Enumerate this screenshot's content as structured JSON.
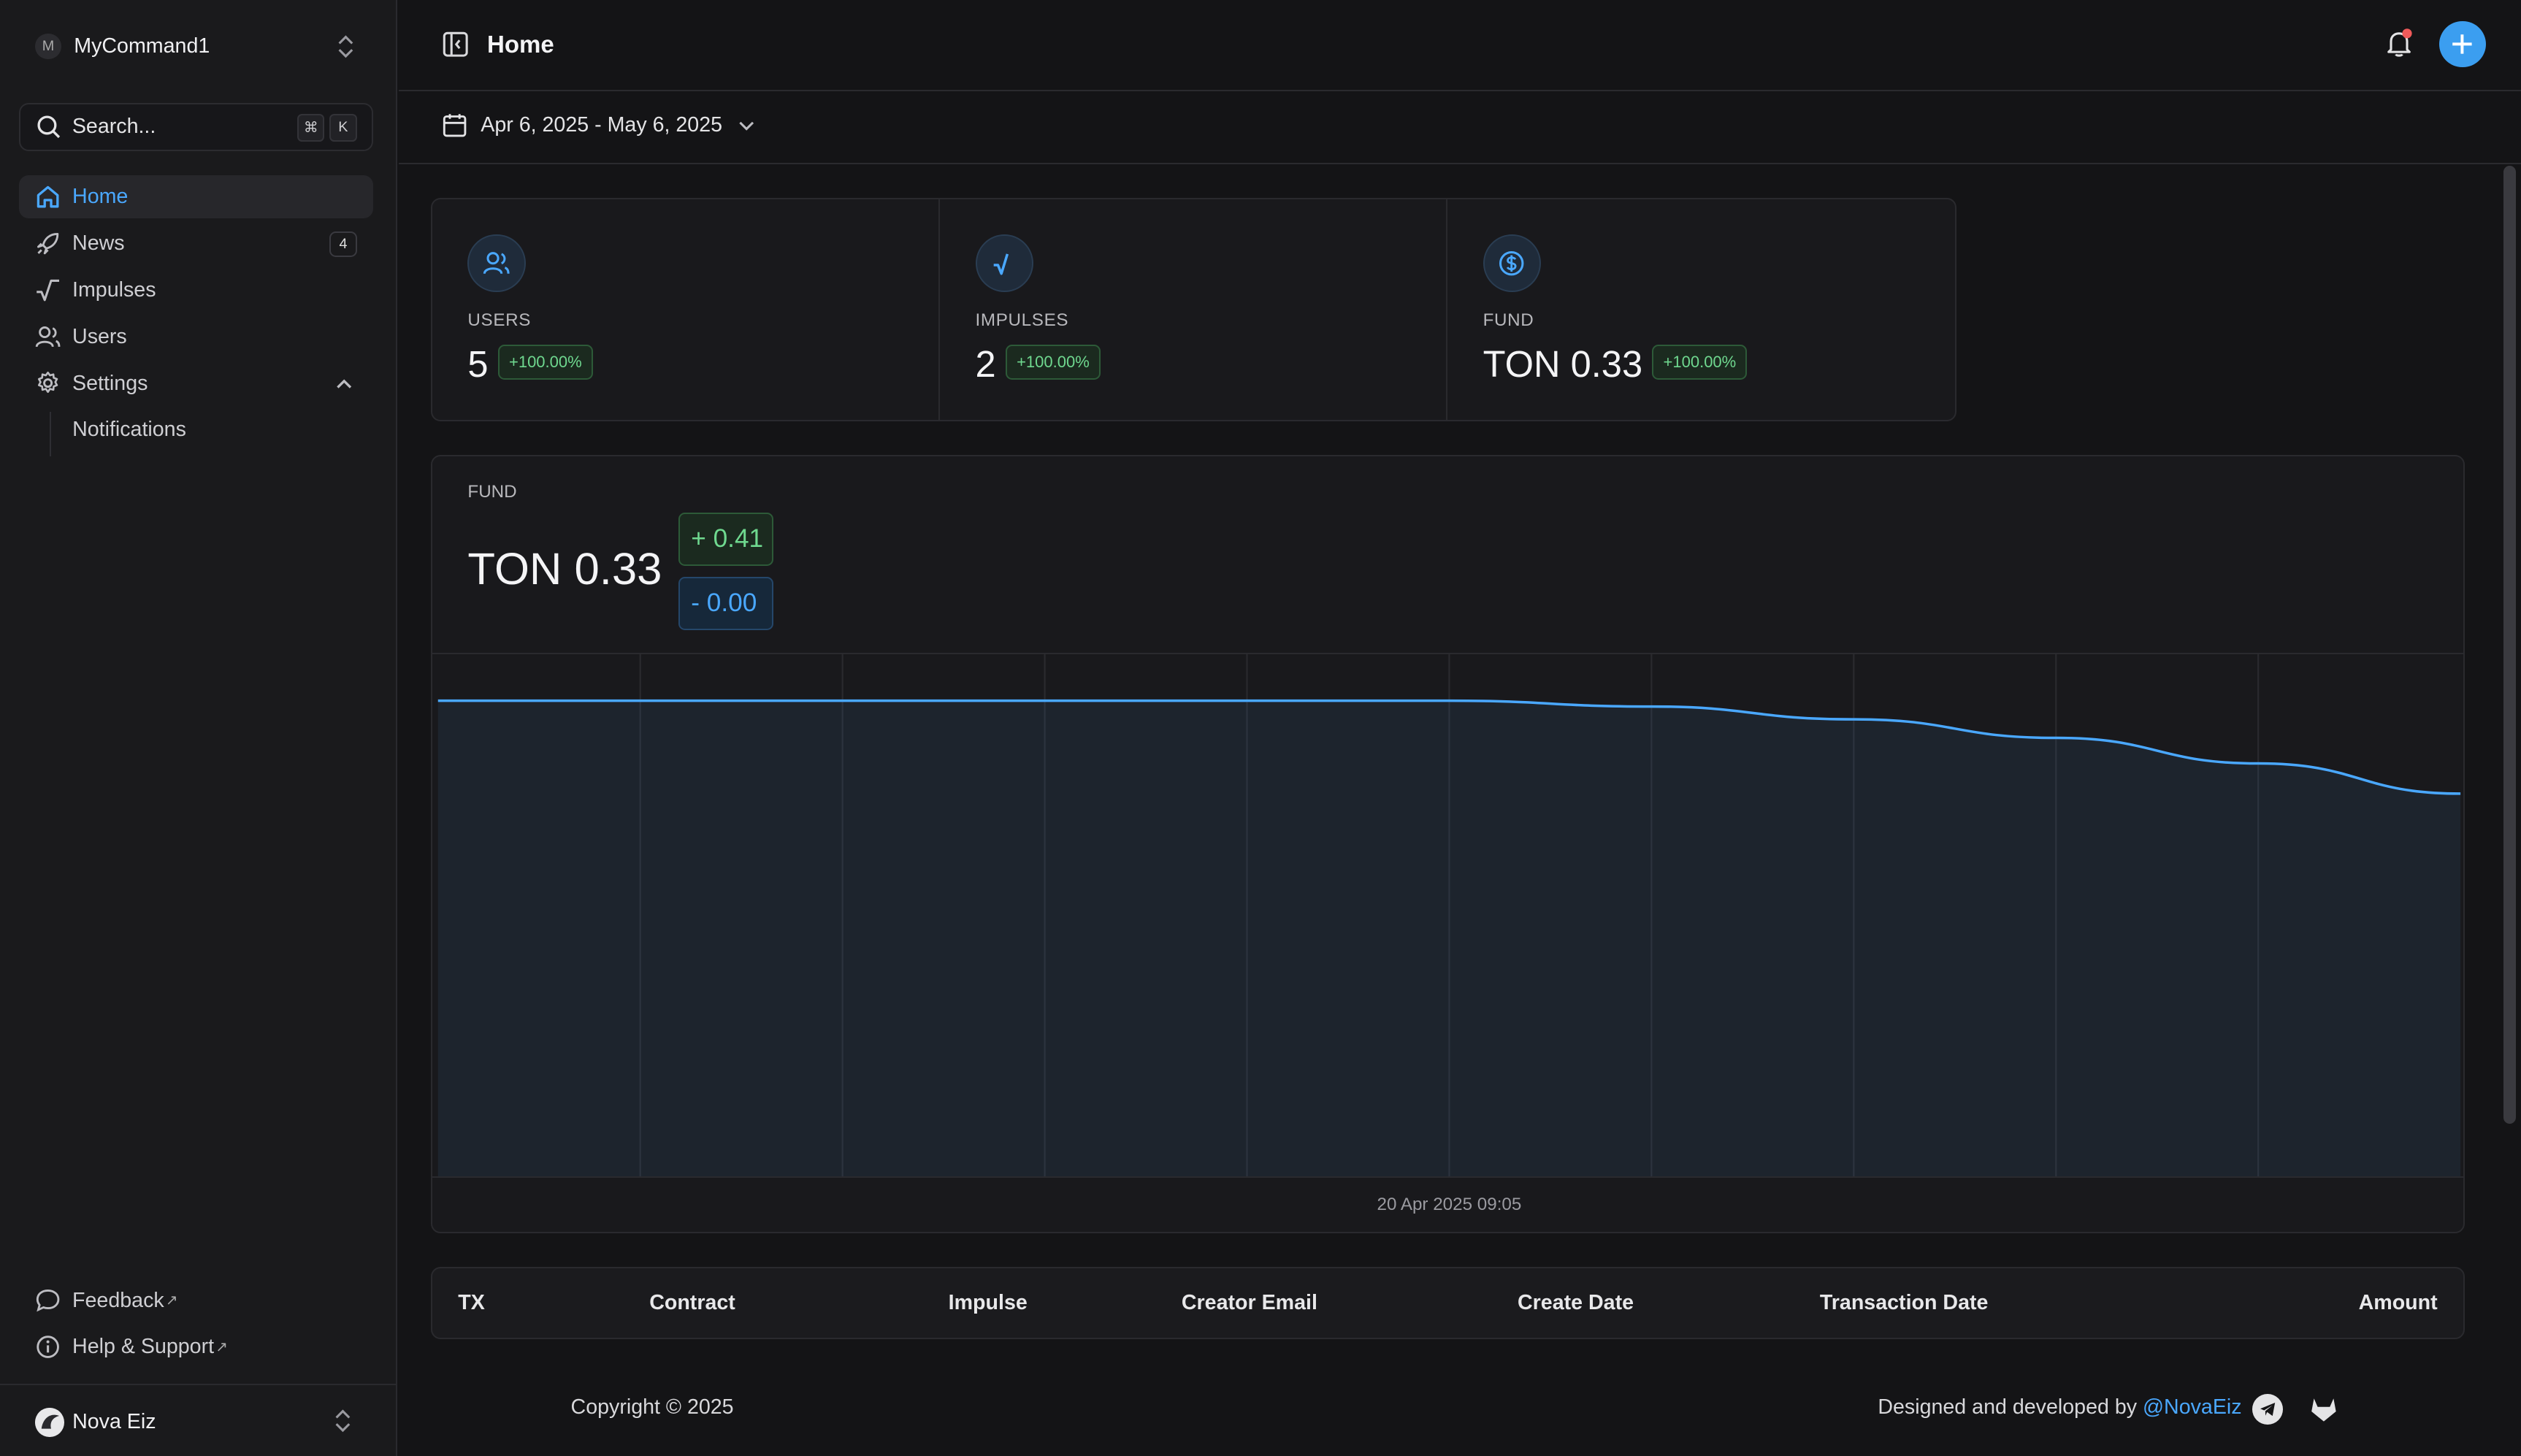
{
  "sidebar": {
    "team": {
      "avatar": "M",
      "name": "MyCommand1"
    },
    "search": {
      "label": "Search...",
      "key1": "⌘",
      "key2": "K"
    },
    "items": [
      {
        "label": "Home",
        "icon": "home-icon",
        "active": true
      },
      {
        "label": "News",
        "icon": "rocket-icon",
        "badge": "4"
      },
      {
        "label": "Impulses",
        "icon": "pulse-icon"
      },
      {
        "label": "Users",
        "icon": "users-icon"
      },
      {
        "label": "Settings",
        "icon": "gear-icon",
        "expanded": true
      }
    ],
    "subitems": [
      {
        "label": "Notifications"
      }
    ],
    "footer": [
      {
        "label": "Feedback",
        "icon": "chat-icon"
      },
      {
        "label": "Help & Support",
        "icon": "info-icon"
      }
    ],
    "user": {
      "name": "Nova Eiz"
    }
  },
  "header": {
    "title": "Home"
  },
  "date_range": {
    "label": "Apr 6, 2025 - May 6, 2025"
  },
  "stats": [
    {
      "label": "USERS",
      "value": "5",
      "change": "+100.00%",
      "icon": "users-icon"
    },
    {
      "label": "IMPULSES",
      "value": "2",
      "change": "+100.00%",
      "icon": "pulse-icon"
    },
    {
      "label": "FUND",
      "value": "TON 0.33",
      "change": "+100.00%",
      "icon": "dollar-circle-icon"
    }
  ],
  "fund_card": {
    "label": "FUND",
    "value": "TON 0.33",
    "up": "+ 0.41",
    "down": "- 0.00"
  },
  "chart_data": {
    "type": "area",
    "x_tick": "20 Apr 2025 09:05",
    "series": [
      {
        "values": [
          0.41,
          0.41,
          0.41,
          0.41,
          0.41,
          0.41,
          0.405,
          0.394,
          0.378,
          0.356,
          0.33
        ]
      }
    ],
    "ylim": [
      0,
      0.45
    ],
    "grid": true,
    "color": "#4aa8ff"
  },
  "table": {
    "columns": [
      "TX",
      "Contract",
      "Impulse",
      "Creator Email",
      "Create Date",
      "Transaction Date",
      "Amount"
    ]
  },
  "footer": {
    "copyright": "Copyright © 2025",
    "credits_prefix": "Designed and developed by ",
    "credits_handle": "@NovaEiz"
  },
  "colors": {
    "accent": "#4aa8ff",
    "positive": "#6fd88f",
    "background": "#141416"
  }
}
